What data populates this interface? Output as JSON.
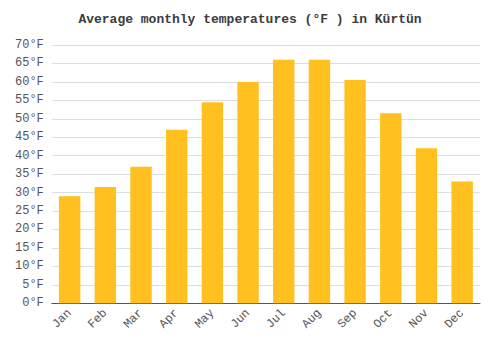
{
  "chart_data": {
    "type": "bar",
    "title": "Average monthly temperatures (°F ) in Kürtün",
    "categories": [
      "Jan",
      "Feb",
      "Mar",
      "Apr",
      "May",
      "Jun",
      "Jul",
      "Aug",
      "Sep",
      "Oct",
      "Nov",
      "Dec"
    ],
    "values": [
      29,
      31.5,
      37,
      47,
      54.5,
      60,
      66,
      66,
      60.5,
      51.5,
      42,
      33
    ],
    "color": "#FFC020",
    "ylim": [
      0,
      70
    ],
    "yticks": [
      {
        "value": 0,
        "label": "0°F"
      },
      {
        "value": 5,
        "label": "5°F"
      },
      {
        "value": 10,
        "label": "10°F"
      },
      {
        "value": 15,
        "label": "15°F"
      },
      {
        "value": 20,
        "label": "20°F"
      },
      {
        "value": 25,
        "label": "25°F"
      },
      {
        "value": 30,
        "label": "30°F"
      },
      {
        "value": 35,
        "label": "35°F"
      },
      {
        "value": 40,
        "label": "40°F"
      },
      {
        "value": 45,
        "label": "45°F"
      },
      {
        "value": 50,
        "label": "50°F"
      },
      {
        "value": 55,
        "label": "55°F"
      },
      {
        "value": 60,
        "label": "60°F"
      },
      {
        "value": 65,
        "label": "65°F"
      },
      {
        "value": 70,
        "label": "70°F"
      }
    ],
    "grid": true
  }
}
